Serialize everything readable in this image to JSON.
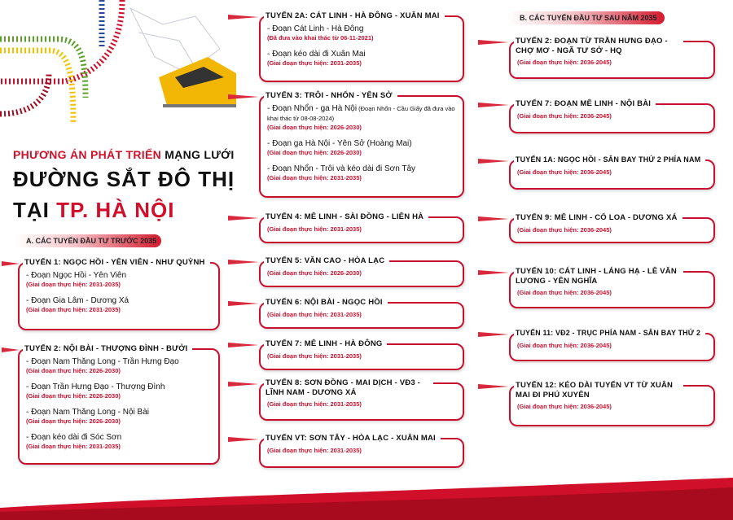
{
  "colors": {
    "accent": "#c8102e",
    "rail_red": "#d0102a",
    "rail_green": "#5aa028",
    "rail_yellow": "#f2c200",
    "rail_blue": "#2c4a9a",
    "train": "#f2b705"
  },
  "header": {
    "line1_red": "PHƯƠNG ÁN PHÁT TRIỂN",
    "line1_black": " MẠNG LƯỚI",
    "line2": "ĐƯỜNG SẮT ĐÔ THỊ",
    "line3_black": "TẠI ",
    "line3_red": "TP. HÀ NỘI"
  },
  "sections": {
    "a": "A. CÁC TUYẾN ĐẦU TƯ TRƯỚC 2035",
    "b": "B. CÁC TUYẾN ĐẦU TƯ SAU NĂM 2035"
  },
  "routes": [
    {
      "title": "TUYẾN 1: NGỌC HỒI - YÊN VIÊN - NHƯ QUỲNH",
      "segments": [
        {
          "name": "- Đoạn Ngọc Hồi - Yên Viên",
          "note": "(Giai đoạn thực hiện: 2031-2035)"
        },
        {
          "name": "- Đoạn Gia Lâm - Dương Xá",
          "note": "(Giai đoạn thực hiện: 2031-2035)"
        }
      ]
    },
    {
      "title": "TUYẾN 2: NỘI BÀI - THƯỢNG ĐÌNH - BƯỞI",
      "segments": [
        {
          "name": "- Đoạn Nam Thăng Long - Trần Hưng Đạo",
          "note": "(Giai đoạn thực hiện: 2026-2030)"
        },
        {
          "name": "- Đoạn Trần Hưng Đạo - Thượng Đình",
          "note": "(Giai đoạn thực hiện: 2026-2030)"
        },
        {
          "name": "- Đoạn Nam Thăng Long - Nội Bài",
          "note": "(Giai đoạn thực hiện: 2026-2030)"
        },
        {
          "name": "- Đoạn kéo dài đi Sóc Sơn",
          "note": "(Giai đoạn thực hiện: 2031-2035)"
        }
      ]
    },
    {
      "title": "TUYẾN 2A: CÁT LINH - HÀ ĐÔNG - XUÂN MAI",
      "segments": [
        {
          "name": "- Đoạn Cát Linh - Hà Đông",
          "note": "(Đã đưa vào khai thác từ 06-11-2021)"
        },
        {
          "name": "- Đoạn kéo dài đi Xuân Mai",
          "note": "(Giai đoạn thực hiện: 2031-2035)"
        }
      ]
    },
    {
      "title": "TUYẾN 3: TRÔI - NHỔN - YÊN SỞ",
      "segments": [
        {
          "name": "- Đoạn Nhổn - ga Hà Nội",
          "extra": " (Đoạn Nhổn - Cầu Giấy đã đưa vào khai thác từ 08-08-2024)",
          "note": "(Giai đoạn thực hiện: 2026-2030)"
        },
        {
          "name": "- Đoạn ga Hà Nội - Yên Sở (Hoàng Mai)",
          "note": "(Giai đoạn thực hiện: 2026-2030)"
        },
        {
          "name": "- Đoạn Nhổn - Trôi và kéo dài đi Sơn Tây",
          "note": "(Giai đoạn thực hiện: 2031-2035)"
        }
      ]
    },
    {
      "title": "TUYẾN 4: MÊ LINH - SÀI ĐỒNG - LIÊN HÀ",
      "segments": [
        {
          "note": "(Giai đoạn thực hiện: 2031-2035)"
        }
      ]
    },
    {
      "title": "TUYẾN 5: VĂN CAO - HÒA LẠC",
      "segments": [
        {
          "note": "(Giai đoạn thực hiện: 2026-2030)"
        }
      ]
    },
    {
      "title": "TUYẾN 6: NỘI BÀI - NGỌC HỒI",
      "segments": [
        {
          "note": "(Giai đoạn thực hiện: 2031-2035)"
        }
      ]
    },
    {
      "title": "TUYẾN 7: MÊ LINH - HÀ ĐÔNG",
      "segments": [
        {
          "note": "(Giai đoạn thực hiện: 2031-2035)"
        }
      ]
    },
    {
      "title": "TUYẾN 8: SƠN ĐỒNG - MAI DỊCH - VĐ3 - LĨNH NAM - DƯƠNG XÁ",
      "segments": [
        {
          "note": "(Giai đoạn thực hiện: 2031-2035)"
        }
      ]
    },
    {
      "title": "TUYẾN VT: SƠN TÂY - HÒA LẠC - XUÂN MAI",
      "segments": [
        {
          "note": "(Giai đoạn thực hiện: 2031-2035)"
        }
      ]
    },
    {
      "title": "TUYẾN 2: ĐOẠN TỪ TRẦN HƯNG ĐẠO - CHỢ MƠ - NGÃ TƯ SỞ - HQ",
      "segments": [
        {
          "note": "(Giai đoạn thực hiện: 2036-2045)"
        }
      ]
    },
    {
      "title": "TUYẾN 7: ĐOẠN MÊ LINH - NỘI BÀI",
      "segments": [
        {
          "note": "(Giai đoạn thực hiện: 2036-2045)"
        }
      ]
    },
    {
      "title": "TUYẾN 1A: NGỌC HỒI - SÂN BAY THỨ 2 PHÍA NAM",
      "segments": [
        {
          "note": "(Giai đoạn thực hiện: 2036-2045)"
        }
      ]
    },
    {
      "title": "TUYẾN 9: MÊ LINH - CỔ LOA - DƯƠNG XÁ",
      "segments": [
        {
          "note": "(Giai đoạn thực hiện: 2036-2045)"
        }
      ]
    },
    {
      "title": "TUYẾN 10: CÁT LINH - LÁNG HẠ - LÊ VĂN LƯƠNG - YÊN NGHĨA",
      "segments": [
        {
          "note": "(Giai đoạn thực hiện: 2036-2045)"
        }
      ]
    },
    {
      "title": "TUYẾN 11: VĐ2 - TRỤC PHÍA NAM - SÂN BAY THỨ 2",
      "segments": [
        {
          "note": "(Giai đoạn thực hiện: 2036-2045)"
        }
      ]
    },
    {
      "title": "TUYẾN 12: KÉO DÀI TUYẾN VT TỪ XUÂN MAI ĐI PHÚ XUYÊN",
      "segments": [
        {
          "note": "(Giai đoạn thực hiện: 2036-2045)"
        }
      ]
    }
  ]
}
